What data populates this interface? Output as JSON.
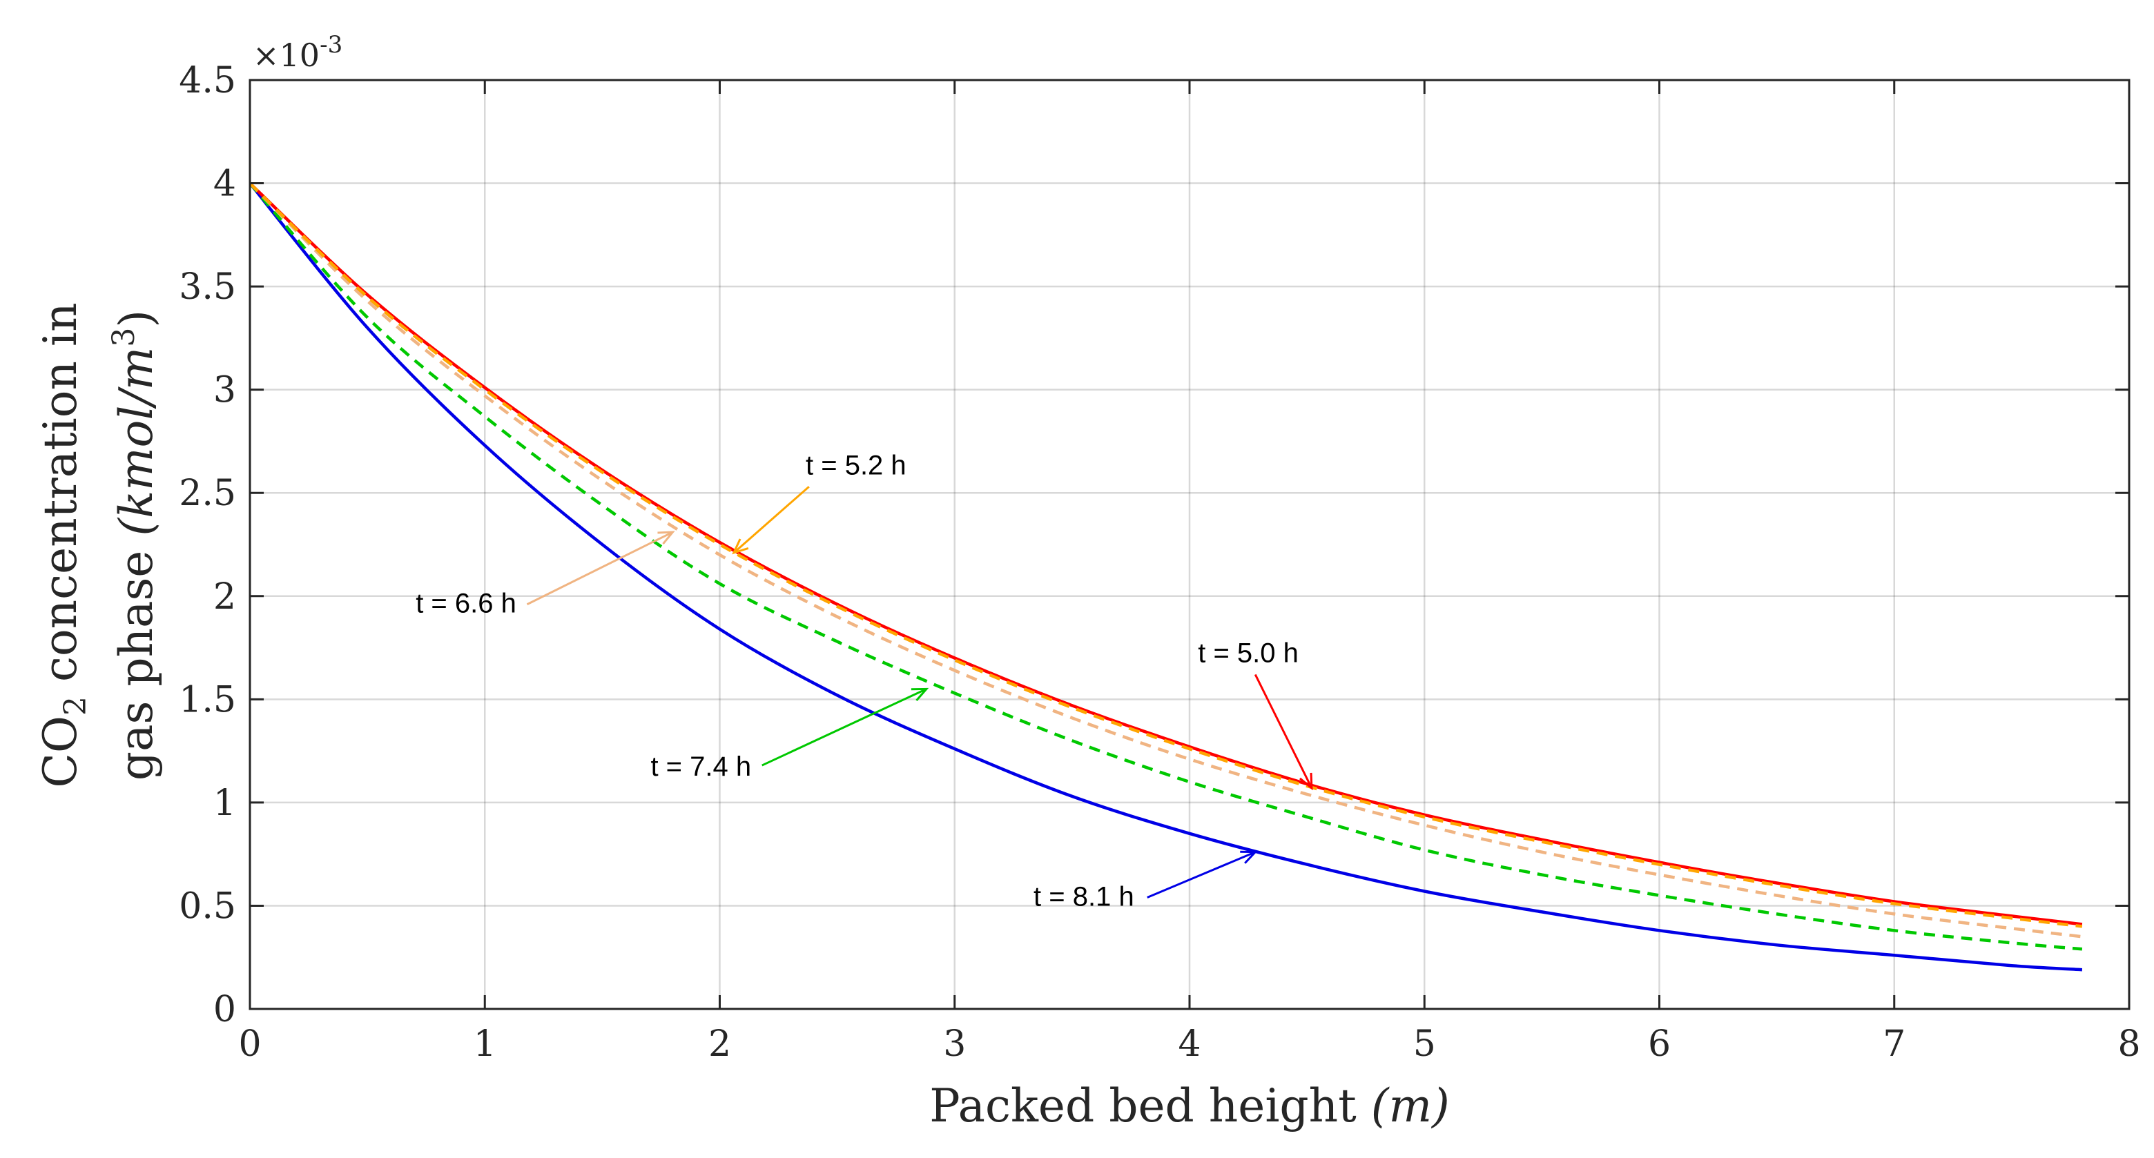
{
  "chart_data": {
    "type": "line",
    "title": "",
    "xlabel_text": "Packed bed height ",
    "xlabel_unit": "(m)",
    "ylabel_line1": {
      "prefix": "CO",
      "subscript": "2",
      "suffix": " concentration in"
    },
    "ylabel_line2": {
      "prefix": "gas phase ",
      "unit": "(kmol/m",
      "unit_sup": "3",
      "unit_close": ")"
    },
    "y_exponent": {
      "multiplier": "×10",
      "power": "-3"
    },
    "xlim": [
      0,
      8
    ],
    "ylim": [
      0,
      4.5
    ],
    "y_scale": 0.001,
    "grid": true,
    "x_ticks": [
      0,
      1,
      2,
      3,
      4,
      5,
      6,
      7,
      8
    ],
    "x_tick_labels": [
      "0",
      "1",
      "2",
      "3",
      "4",
      "5",
      "6",
      "7",
      "8"
    ],
    "y_ticks": [
      0,
      0.5,
      1,
      1.5,
      2,
      2.5,
      3,
      3.5,
      4,
      4.5
    ],
    "y_tick_labels": [
      "0",
      "0.5",
      "1",
      "1.5",
      "2",
      "2.5",
      "3",
      "3.5",
      "4",
      "4.5"
    ],
    "x": [
      0,
      0.5,
      1,
      1.5,
      2,
      2.5,
      3,
      3.5,
      4,
      4.5,
      5,
      5.5,
      6,
      6.5,
      7,
      7.5,
      7.8
    ],
    "series": [
      {
        "name": "t = 5.0 h",
        "color": "#ff0000",
        "style": "solid",
        "values": [
          4.0,
          3.46,
          3.01,
          2.61,
          2.26,
          1.96,
          1.7,
          1.47,
          1.27,
          1.09,
          0.94,
          0.82,
          0.71,
          0.61,
          0.52,
          0.45,
          0.41
        ]
      },
      {
        "name": "t = 5.2 h",
        "color": "#ffa500",
        "style": "dashed",
        "values": [
          4.0,
          3.45,
          3.0,
          2.6,
          2.25,
          1.95,
          1.69,
          1.46,
          1.26,
          1.08,
          0.93,
          0.81,
          0.7,
          0.6,
          0.51,
          0.44,
          0.4
        ]
      },
      {
        "name": "t = 6.6 h",
        "color": "#f0b482",
        "style": "dashed",
        "values": [
          4.0,
          3.43,
          2.97,
          2.56,
          2.2,
          1.9,
          1.64,
          1.41,
          1.21,
          1.04,
          0.89,
          0.76,
          0.65,
          0.55,
          0.46,
          0.39,
          0.35
        ]
      },
      {
        "name": "t = 7.4 h",
        "color": "#00c800",
        "style": "dashed",
        "values": [
          4.0,
          3.35,
          2.87,
          2.44,
          2.06,
          1.78,
          1.53,
          1.3,
          1.1,
          0.93,
          0.77,
          0.65,
          0.55,
          0.46,
          0.38,
          0.32,
          0.29
        ]
      },
      {
        "name": "t = 8.1 h",
        "color": "#0000e6",
        "style": "solid",
        "values": [
          4.0,
          3.3,
          2.73,
          2.25,
          1.84,
          1.52,
          1.26,
          1.03,
          0.85,
          0.7,
          0.57,
          0.47,
          0.38,
          0.31,
          0.26,
          0.21,
          0.19
        ]
      }
    ],
    "annotations": [
      {
        "text": "t = 5.0 h",
        "series": "t = 5.0 h",
        "color": "#ff0000",
        "label_at": [
          4.25,
          1.68
        ],
        "arrow_from": [
          4.28,
          1.62
        ],
        "arrow_to": [
          4.52,
          1.07
        ]
      },
      {
        "text": "t = 5.2 h",
        "series": "t = 5.2 h",
        "color": "#ffa500",
        "label_at": [
          2.58,
          2.59
        ],
        "arrow_from": [
          2.38,
          2.53
        ],
        "arrow_to": [
          2.06,
          2.21
        ]
      },
      {
        "text": "t = 6.6 h",
        "series": "t = 6.6 h",
        "color": "#f0b482",
        "label_at": [
          0.92,
          1.92
        ],
        "arrow_from": [
          1.18,
          1.96
        ],
        "arrow_to": [
          1.8,
          2.31
        ]
      },
      {
        "text": "t = 7.4 h",
        "series": "t = 7.4 h",
        "color": "#00c800",
        "label_at": [
          1.92,
          1.13
        ],
        "arrow_from": [
          2.18,
          1.18
        ],
        "arrow_to": [
          2.88,
          1.55
        ]
      },
      {
        "text": "t = 8.1 h",
        "series": "t = 8.1 h",
        "color": "#0000e6",
        "label_at": [
          3.55,
          0.5
        ],
        "arrow_from": [
          3.82,
          0.54
        ],
        "arrow_to": [
          4.28,
          0.76
        ]
      }
    ]
  }
}
